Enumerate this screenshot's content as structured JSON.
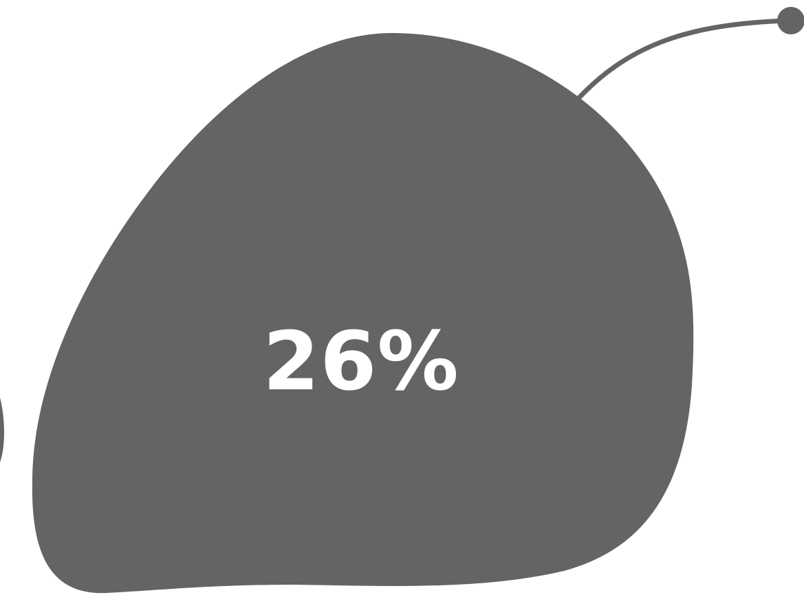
{
  "value_label": "26%",
  "colors": {
    "shape_fill": "#646464",
    "label_text": "#ffffff",
    "background": "#ffffff"
  }
}
